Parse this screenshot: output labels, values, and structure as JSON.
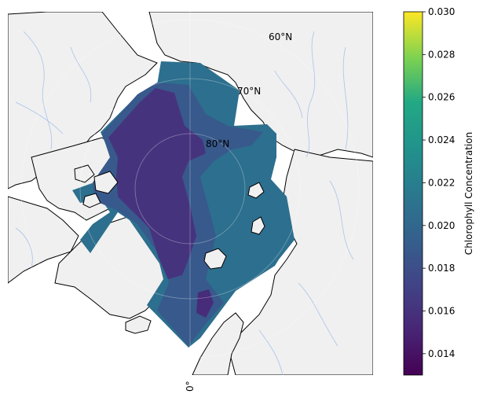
{
  "map": {
    "lat_labels": [
      "60°N",
      "70°N",
      "80°N"
    ],
    "lon_labels": [
      "0°"
    ],
    "colors": {
      "land": "#f0f0f0",
      "coast": "#000000",
      "rivers": "#a9c4ea",
      "grid": "#ffffff"
    }
  },
  "colorbar": {
    "label": "Chlorophyll Concentration",
    "min": 0.013,
    "max": 0.03,
    "ticks": [
      "0.014",
      "0.016",
      "0.018",
      "0.020",
      "0.022",
      "0.024",
      "0.026",
      "0.028",
      "0.030"
    ],
    "colormap": "viridis"
  },
  "fields": {
    "base_level": "0.0195",
    "levels": [
      "0.0185",
      "0.016",
      "0.014"
    ]
  }
}
